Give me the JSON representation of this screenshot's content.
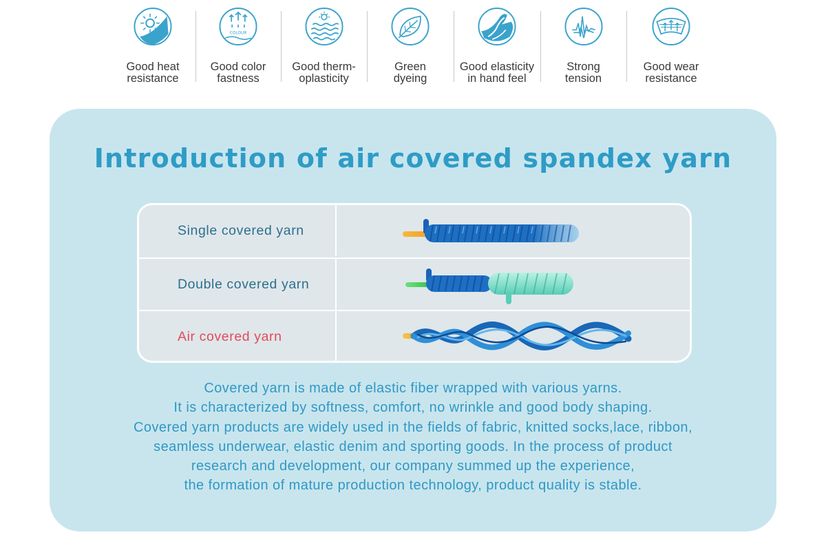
{
  "features": [
    {
      "icon": "sun-heat-icon",
      "label": "Good heat\nresistance"
    },
    {
      "icon": "color-drops-icon",
      "label": "Good color\nfastness",
      "icon_text": "COLOUR"
    },
    {
      "icon": "waves-icon",
      "label": "Good therm-\noplasticity"
    },
    {
      "icon": "leaf-icon",
      "label": "Green\ndyeing"
    },
    {
      "icon": "hand-stretch-icon",
      "label": "Good elasticity\nin hand feel"
    },
    {
      "icon": "pulse-line-icon",
      "label": "Strong\ntension"
    },
    {
      "icon": "fabric-arrows-icon",
      "label": "Good wear\nresistance"
    }
  ],
  "colors": {
    "accent": "#2e9cc6",
    "panel_bg": "#c8e5ee",
    "highlight": "#e34a5a",
    "table_text": "#2d6f8e",
    "icon_blue": "#3aa3cc"
  },
  "intro": {
    "title": "Introduction of air covered spandex yarn",
    "rows": [
      {
        "name": "Single covered yarn",
        "highlight": false,
        "image": "single-covered-yarn-icon"
      },
      {
        "name": "Double covered yarn",
        "highlight": false,
        "image": "double-covered-yarn-icon"
      },
      {
        "name": "Air covered yarn",
        "highlight": true,
        "image": "air-covered-yarn-icon"
      }
    ],
    "paragraph": [
      "Covered yarn is made of elastic fiber wrapped with various yarns.",
      "It is characterized by softness, comfort, no wrinkle and good body shaping.",
      "Covered yarn products are widely used in the fields of fabric, knitted socks,lace, ribbon,",
      "seamless underwear, elastic denim and sporting goods. In the process of product",
      "research and development, our company summed up the experience,",
      "the formation of mature production technology, product quality is stable."
    ]
  }
}
